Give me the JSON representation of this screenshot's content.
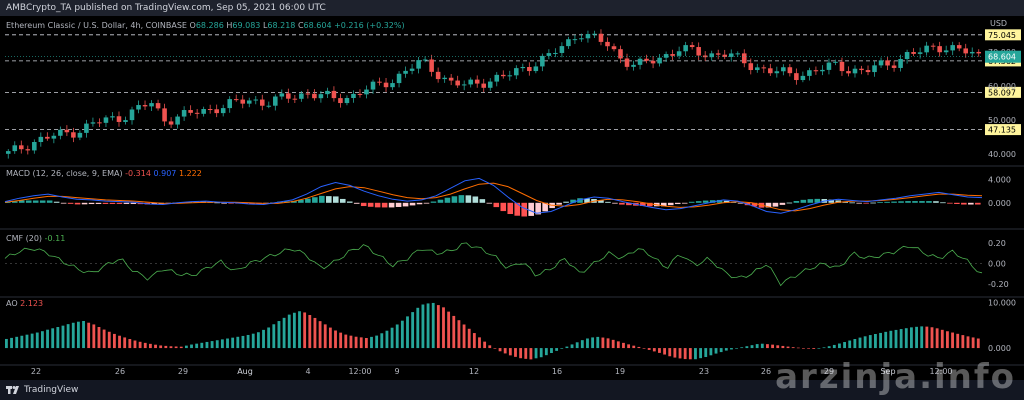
{
  "header": {
    "published": "AMBCrypto_TA published on TradingView.com, Sep 05, 2021 06:00 UTC"
  },
  "footer": {
    "brand": "TradingView",
    "watermark": "arzinja.info"
  },
  "colors": {
    "up": "#26a69a",
    "down": "#ef5350",
    "grid": "#2a2e39",
    "macd": "#2962ff",
    "signal": "#ff6d00",
    "cmf": "#4caf50",
    "text": "#b2b5be"
  },
  "chart_data": [
    {
      "type": "candlestick",
      "title": "Ethereum Classic / U.S. Dollar, 4h, COINBASE",
      "ohlc": {
        "o_label": "O",
        "o": "68.286",
        "h_label": "H",
        "h": "69.083",
        "l_label": "L",
        "l": "68.218",
        "c_label": "C",
        "c": "68.604",
        "change": "+0.216 (+0.32%)"
      },
      "currency": "USD",
      "ylim": [
        37,
        80
      ],
      "yticks": [
        40.0,
        50.0,
        60.0,
        70.0
      ],
      "ytick_labels": [
        "40.000",
        "50.000",
        "60.000",
        "70.000"
      ],
      "price_lines": [
        {
          "value": 75.045,
          "label": "75.045"
        },
        {
          "value": 67.362,
          "label": "67.362"
        },
        {
          "value": 58.097,
          "label": "58.097"
        },
        {
          "value": 47.135,
          "label": "47.135"
        }
      ],
      "last_price": {
        "value": 68.604,
        "label": "68.604"
      },
      "close_path": [
        40,
        42,
        44,
        45,
        46,
        47,
        49,
        50,
        51,
        53,
        55,
        50,
        51,
        52,
        53,
        54,
        55,
        56,
        55,
        56,
        57,
        58,
        57,
        56,
        57,
        59,
        60,
        62,
        65,
        67,
        64,
        61,
        60,
        61,
        62,
        63,
        65,
        67,
        69,
        72,
        76,
        74,
        72,
        68,
        66,
        67,
        69,
        71,
        70,
        69,
        70,
        68,
        66,
        65,
        64,
        63,
        64,
        65,
        66,
        65,
        64,
        66,
        67,
        69,
        70,
        72,
        71,
        70,
        69
      ]
    },
    {
      "type": "line",
      "title": "MACD (12, 26, close, 9, EMA)",
      "values_label": [
        "-0.314",
        "0.907",
        "1.222"
      ],
      "yticks": [
        4.0,
        0.0
      ],
      "ytick_labels": [
        "4.000",
        "0.000"
      ],
      "ylim": [
        -4,
        6
      ],
      "series": [
        {
          "name": "MACD",
          "values": [
            0.2,
            0.8,
            1.2,
            1.5,
            1.0,
            0.6,
            0.5,
            0.3,
            0.2,
            0.1,
            -0.2,
            -0.3,
            0.0,
            0.2,
            0.3,
            0.1,
            0.0,
            -0.2,
            -0.3,
            0.1,
            0.5,
            1.5,
            2.8,
            3.5,
            3.0,
            2.0,
            1.2,
            0.6,
            0.3,
            0.5,
            1.2,
            2.5,
            3.8,
            4.2,
            3.0,
            1.0,
            -0.8,
            -1.8,
            -1.5,
            -0.5,
            0.5,
            1.0,
            0.8,
            0.2,
            -0.3,
            -0.8,
            -1.2,
            -1.0,
            -0.5,
            0.0,
            0.5,
            0.3,
            -0.5,
            -1.5,
            -1.8,
            -1.2,
            -0.4,
            0.3,
            0.6,
            0.4,
            0.2,
            0.5,
            0.8,
            1.2,
            1.5,
            1.8,
            1.4,
            1.0,
            0.9
          ]
        },
        {
          "name": "Signal",
          "values": [
            0.1,
            0.4,
            0.8,
            1.1,
            1.1,
            0.9,
            0.7,
            0.5,
            0.4,
            0.3,
            0.1,
            -0.1,
            -0.1,
            0.0,
            0.1,
            0.1,
            0.1,
            0.0,
            -0.1,
            -0.1,
            0.2,
            0.8,
            1.6,
            2.4,
            2.8,
            2.6,
            2.0,
            1.4,
            0.9,
            0.7,
            0.9,
            1.5,
            2.4,
            3.2,
            3.4,
            2.8,
            1.6,
            0.4,
            -0.4,
            -0.6,
            -0.3,
            0.3,
            0.6,
            0.5,
            0.2,
            -0.2,
            -0.6,
            -0.8,
            -0.7,
            -0.4,
            0.0,
            0.2,
            0.0,
            -0.6,
            -1.2,
            -1.4,
            -1.0,
            -0.4,
            0.1,
            0.3,
            0.3,
            0.4,
            0.6,
            0.9,
            1.2,
            1.5,
            1.5,
            1.3,
            1.2
          ]
        }
      ]
    },
    {
      "type": "line",
      "title": "CMF (20)",
      "values_label": [
        "-0.11"
      ],
      "yticks": [
        0.2,
        0.0,
        -0.2
      ],
      "ytick_labels": [
        "0.20",
        "0.00",
        "-0.20"
      ],
      "ylim": [
        -0.32,
        0.3
      ],
      "series": [
        {
          "name": "CMF",
          "values": [
            0.05,
            0.12,
            0.15,
            0.1,
            0.02,
            -0.05,
            -0.1,
            -0.02,
            0.05,
            -0.08,
            -0.15,
            -0.05,
            -0.1,
            -0.12,
            -0.05,
            0.02,
            -0.08,
            0.0,
            0.05,
            0.1,
            0.15,
            0.08,
            -0.05,
            0.02,
            0.12,
            0.18,
            0.08,
            -0.02,
            0.05,
            0.15,
            0.1,
            0.12,
            0.2,
            0.15,
            0.08,
            -0.05,
            0.02,
            -0.12,
            -0.05,
            0.05,
            -0.1,
            0.0,
            0.1,
            0.05,
            0.15,
            0.08,
            -0.05,
            0.1,
            -0.02,
            0.05,
            -0.08,
            -0.15,
            -0.1,
            0.0,
            -0.2,
            -0.12,
            -0.05,
            0.0,
            -0.05,
            0.1,
            0.05,
            0.08,
            0.12,
            0.18,
            0.1,
            0.05,
            0.12,
            0.02,
            -0.11
          ]
        }
      ]
    },
    {
      "type": "bar",
      "title": "AO",
      "values_label": [
        "2.123"
      ],
      "yticks": [
        10.0,
        0.0
      ],
      "ytick_labels": [
        "10.000",
        "0.000"
      ],
      "ylim": [
        -3.5,
        11
      ],
      "series": [
        {
          "name": "AO",
          "values": [
            2.0,
            2.5,
            3.0,
            3.5,
            4.2,
            4.8,
            5.5,
            6.0,
            5.2,
            4.0,
            3.0,
            2.2,
            1.5,
            1.0,
            0.6,
            0.4,
            0.3,
            0.8,
            1.2,
            1.6,
            2.0,
            2.4,
            2.8,
            3.4,
            4.5,
            6.0,
            7.5,
            8.2,
            7.0,
            5.5,
            4.0,
            3.0,
            2.5,
            2.2,
            2.8,
            4.0,
            5.5,
            7.5,
            9.5,
            10.0,
            9.0,
            7.0,
            5.0,
            3.0,
            1.0,
            -0.5,
            -1.5,
            -2.2,
            -2.5,
            -2.0,
            -1.0,
            0.0,
            1.0,
            2.0,
            2.5,
            2.2,
            1.5,
            0.8,
            0.2,
            -0.5,
            -1.2,
            -2.0,
            -2.4,
            -2.5,
            -2.0,
            -1.2,
            -0.5,
            0.0,
            0.5,
            1.0,
            0.8,
            0.5,
            0.2,
            0.0,
            -0.2,
            0.2,
            0.8,
            1.5,
            2.2,
            2.8,
            3.3,
            3.8,
            4.2,
            4.6,
            4.8,
            4.5,
            3.8,
            3.2,
            2.6,
            2.1
          ]
        }
      ]
    },
    {
      "type": "axis",
      "x_tick_labels": [
        "22",
        "26",
        "29",
        "Aug",
        "4",
        "12:00",
        "9",
        "12",
        "16",
        "19",
        "23",
        "26",
        "29",
        "Sep",
        "12:00"
      ]
    }
  ]
}
